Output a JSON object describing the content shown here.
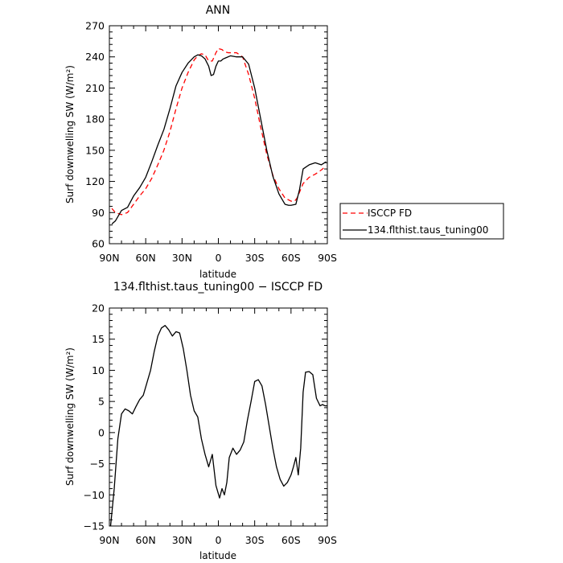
{
  "chart_data": [
    {
      "type": "line",
      "title": "ANN",
      "xlabel": "latitude",
      "ylabel": "Surf downwelling SW (W/m²)",
      "x_ticks": [
        "90N",
        "60N",
        "30N",
        "0",
        "30S",
        "60S",
        "90S"
      ],
      "x_tick_values": [
        90,
        60,
        30,
        0,
        -30,
        -60,
        -90
      ],
      "xlim": [
        90,
        -90
      ],
      "ylim": [
        60,
        270
      ],
      "y_ticks": [
        60,
        90,
        120,
        150,
        180,
        210,
        240,
        270
      ],
      "grid": false,
      "legend_position": "outside-right",
      "series": [
        {
          "name": "ISCCP FD",
          "color": "#ff0000",
          "dash": "dashed",
          "x": [
            88,
            85,
            80,
            75,
            70,
            65,
            60,
            55,
            50,
            45,
            40,
            35,
            30,
            25,
            20,
            17,
            14,
            11,
            8,
            5,
            2,
            0,
            -3,
            -5,
            -8,
            -10,
            -15,
            -20,
            -25,
            -30,
            -35,
            -40,
            -45,
            -50,
            -55,
            -60,
            -63,
            -65,
            -70,
            -75,
            -80,
            -85,
            -89
          ],
          "y": [
            94,
            90,
            88,
            90,
            98,
            106,
            113,
            123,
            136,
            150,
            168,
            190,
            210,
            225,
            237,
            241,
            243,
            242,
            236,
            236,
            244,
            248,
            247,
            245,
            244,
            244,
            244,
            240,
            223,
            200,
            172,
            146,
            126,
            113,
            104,
            101,
            101,
            104,
            118,
            124,
            127,
            131,
            135
          ]
        },
        {
          "name": "134.flthist.taus_tuning00",
          "color": "#000000",
          "dash": "solid",
          "x": [
            88,
            85,
            80,
            75,
            70,
            65,
            60,
            55,
            50,
            45,
            40,
            35,
            30,
            25,
            20,
            17,
            14,
            11,
            8,
            6,
            4,
            2,
            0,
            -2,
            -4,
            -6,
            -10,
            -15,
            -20,
            -25,
            -30,
            -35,
            -40,
            -45,
            -50,
            -55,
            -58,
            -60,
            -64,
            -67,
            -70,
            -75,
            -80,
            -85,
            -89
          ],
          "y": [
            79,
            82,
            92,
            95,
            106,
            114,
            124,
            139,
            155,
            170,
            190,
            212,
            225,
            234,
            240,
            242,
            241,
            238,
            231,
            222,
            223,
            231,
            236,
            236,
            238,
            239,
            241,
            240,
            240,
            233,
            210,
            180,
            150,
            125,
            108,
            98,
            97,
            97,
            98,
            112,
            132,
            136,
            138,
            136,
            139
          ]
        }
      ]
    },
    {
      "type": "line",
      "title": "134.flthist.taus_tuning00 − ISCCP FD",
      "xlabel": "latitude",
      "ylabel": "Surf downwelling SW (W/m²)",
      "x_ticks": [
        "90N",
        "60N",
        "30N",
        "0",
        "30S",
        "60S",
        "90S"
      ],
      "x_tick_values": [
        90,
        60,
        30,
        0,
        -30,
        -60,
        -90
      ],
      "xlim": [
        90,
        -90
      ],
      "ylim": [
        -15,
        20
      ],
      "y_ticks": [
        -15,
        -10,
        -5,
        0,
        5,
        10,
        15,
        20
      ],
      "grid": false,
      "series": [
        {
          "color": "#000000",
          "dash": "solid",
          "x": [
            89,
            86,
            83,
            80,
            77,
            74,
            71,
            68,
            65,
            62,
            59,
            56,
            53,
            50,
            47,
            44,
            41,
            38,
            35,
            32,
            29,
            26,
            23,
            20,
            17,
            14,
            11,
            8,
            5,
            2,
            -1,
            -3,
            -5,
            -7,
            -9,
            -12,
            -15,
            -18,
            -21,
            -24,
            -27,
            -30,
            -33,
            -36,
            -39,
            -42,
            -45,
            -48,
            -51,
            -54,
            -57,
            -60,
            -62,
            -64,
            -66,
            -68,
            -70,
            -72,
            -75,
            -78,
            -81,
            -84,
            -86,
            -88,
            -90
          ],
          "y": [
            -15,
            -9,
            -1,
            3,
            3.8,
            3.5,
            3,
            4.2,
            5.3,
            6,
            8,
            10,
            13,
            15.5,
            16.8,
            17.2,
            16.5,
            15.5,
            16.2,
            16,
            13.5,
            10,
            6,
            3.5,
            2.5,
            -1,
            -3.5,
            -5.5,
            -3.5,
            -8.5,
            -10.5,
            -9,
            -10,
            -8,
            -4,
            -2.5,
            -3.5,
            -2.8,
            -1.5,
            2,
            5,
            8.2,
            8.5,
            7.5,
            4.5,
            1,
            -2.5,
            -5.5,
            -7.5,
            -8.6,
            -8,
            -6.8,
            -5.5,
            -4,
            -6.8,
            -2.5,
            6.5,
            9.7,
            9.8,
            9.3,
            5.5,
            4.3,
            4.5,
            4.3,
            4.3
          ]
        }
      ]
    }
  ]
}
